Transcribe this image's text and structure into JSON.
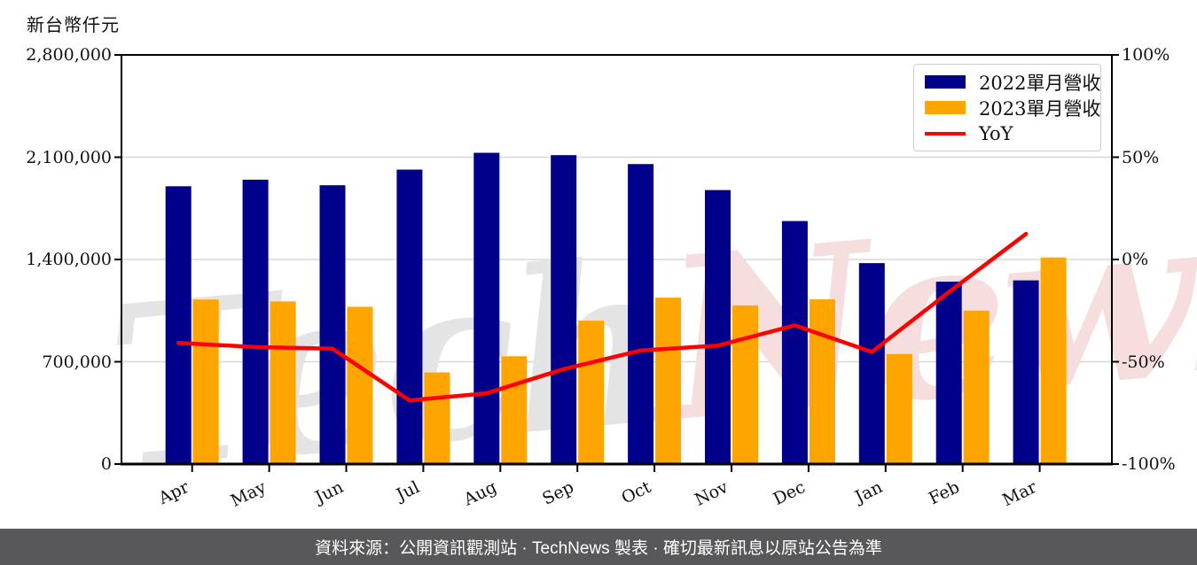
{
  "title": "新台幣仟元",
  "watermark": {
    "part1": "Tech",
    "part2": "News"
  },
  "footer": {
    "text": "資料來源：公開資訊觀測站 · TechNews 製表 · 確切最新訊息以原站公告為準"
  },
  "colors": {
    "series_2022": "#00008B",
    "series_2023": "#FFA500",
    "yoy_line": "#FF0000",
    "grid": "#D8D8D8",
    "axis": "#000000",
    "footer_bg": "#58585A",
    "footer_text": "#FFFFFF",
    "watermark_gray": "#E4E4E4",
    "watermark_pink": "#F7DEDE",
    "legend_border": "#CCCCCC"
  },
  "chart_data": {
    "type": "bar",
    "title": "新台幣仟元",
    "categories": [
      "Apr",
      "May",
      "Jun",
      "Jul",
      "Aug",
      "Sep",
      "Oct",
      "Nov",
      "Dec",
      "Jan",
      "Feb",
      "Mar"
    ],
    "series": [
      {
        "name": "2022單月營收",
        "color": "#00008B",
        "values": [
          1901000,
          1946000,
          1908000,
          2015000,
          2130000,
          2114000,
          2053000,
          1875000,
          1663000,
          1375000,
          1248000,
          1257000
        ]
      },
      {
        "name": "2023單月營收",
        "color": "#FFA500",
        "values": [
          1126000,
          1113000,
          1076000,
          627000,
          738000,
          981000,
          1139000,
          1086000,
          1127000,
          753000,
          1050000,
          1414000
        ]
      }
    ],
    "line_series": {
      "name": "YoY",
      "color": "#FF0000",
      "axis": "right",
      "values_pct": [
        -40.8,
        -42.8,
        -43.6,
        -68.9,
        -65.4,
        -53.6,
        -44.5,
        -42.1,
        -32.2,
        -45.2,
        -15.9,
        12.5
      ]
    },
    "left_axis": {
      "label": "新台幣仟元",
      "min": 0,
      "max": 2800000,
      "tick_labels_top_to_bottom": [
        "2,800,000",
        "2,100,000",
        "1,400,000",
        "700,000",
        "0"
      ]
    },
    "right_axis": {
      "min": -100,
      "max": 100,
      "tick_labels_top_to_bottom": [
        "100%",
        "50%",
        "0%",
        "-50%",
        "-100%"
      ]
    },
    "grid": true,
    "legend_position": "top-right"
  }
}
